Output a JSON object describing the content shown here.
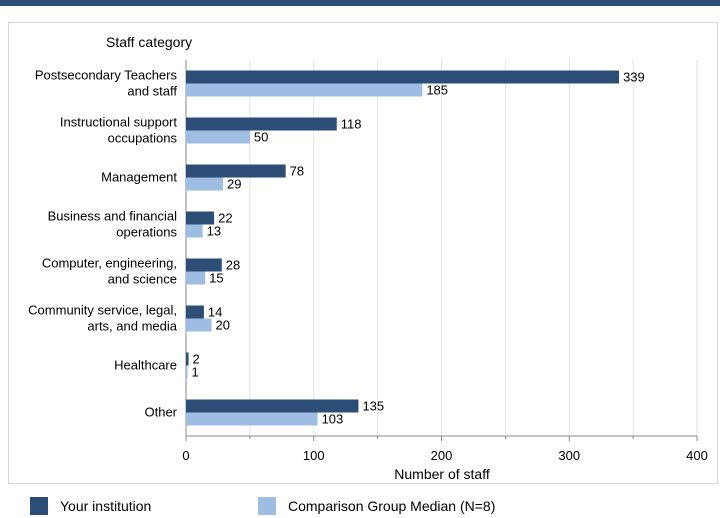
{
  "chart_data": {
    "type": "bar",
    "orientation": "horizontal",
    "ylabel": "Staff category",
    "xlabel": "Number of staff",
    "xlim": [
      0,
      400
    ],
    "xticks": [
      0,
      100,
      200,
      300,
      400
    ],
    "grid": true,
    "legend_position": "bottom",
    "categories": [
      [
        "Postsecondary Teachers",
        "and staff"
      ],
      [
        "Instructional support",
        "occupations"
      ],
      [
        "Management"
      ],
      [
        "Business and financial",
        "operations"
      ],
      [
        "Computer, engineering,",
        "and science"
      ],
      [
        "Community service, legal,",
        "arts, and media"
      ],
      [
        "Healthcare"
      ],
      [
        "Other"
      ]
    ],
    "series": [
      {
        "name": "Your institution",
        "color": "#2c4d75",
        "values": [
          339,
          118,
          78,
          22,
          28,
          14,
          2,
          135
        ]
      },
      {
        "name": "Comparison Group Median (N=8)",
        "color": "#9dbde3",
        "values": [
          185,
          50,
          29,
          13,
          15,
          20,
          1,
          103
        ]
      }
    ]
  }
}
